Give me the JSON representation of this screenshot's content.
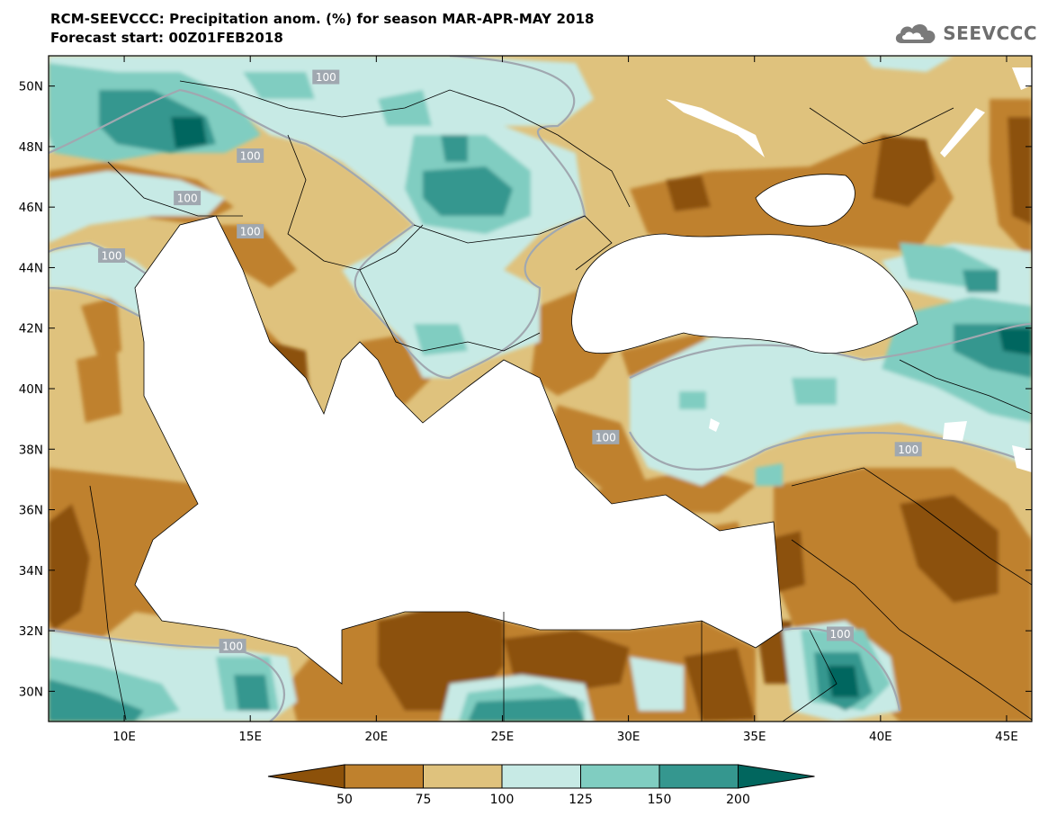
{
  "title": {
    "line1": "RCM-SEEVCCC: Precipitation anom. (%) for season MAR-APR-MAY 2018",
    "line2": "Forecast start: 00Z01FEB2018"
  },
  "logo": {
    "text": "SEEVCCC",
    "icon": "cloud-icon"
  },
  "map": {
    "lon_range": [
      7,
      46
    ],
    "lat_range": [
      29,
      51
    ],
    "lon_ticks": [
      {
        "value": 10,
        "label": "10E"
      },
      {
        "value": 15,
        "label": "15E"
      },
      {
        "value": 20,
        "label": "20E"
      },
      {
        "value": 25,
        "label": "25E"
      },
      {
        "value": 30,
        "label": "30E"
      },
      {
        "value": 35,
        "label": "35E"
      },
      {
        "value": 40,
        "label": "40E"
      },
      {
        "value": 45,
        "label": "45E"
      }
    ],
    "lat_ticks": [
      {
        "value": 50,
        "label": "50N"
      },
      {
        "value": 48,
        "label": "48N"
      },
      {
        "value": 46,
        "label": "46N"
      },
      {
        "value": 44,
        "label": "44N"
      },
      {
        "value": 42,
        "label": "42N"
      },
      {
        "value": 40,
        "label": "40N"
      },
      {
        "value": 38,
        "label": "38N"
      },
      {
        "value": 36,
        "label": "36N"
      },
      {
        "value": 34,
        "label": "34N"
      },
      {
        "value": 32,
        "label": "32N"
      },
      {
        "value": 30,
        "label": "30N"
      }
    ],
    "contour_labels": [
      {
        "text": "100",
        "lon": 18.0,
        "lat": 50.3
      },
      {
        "text": "100",
        "lon": 15.0,
        "lat": 47.7
      },
      {
        "text": "100",
        "lon": 12.5,
        "lat": 46.3
      },
      {
        "text": "100",
        "lon": 15.0,
        "lat": 45.2
      },
      {
        "text": "100",
        "lon": 9.5,
        "lat": 44.4
      },
      {
        "text": "100",
        "lon": 14.3,
        "lat": 31.5
      },
      {
        "text": "100",
        "lon": 29.1,
        "lat": 38.4
      },
      {
        "text": "100",
        "lon": 41.1,
        "lat": 38.0
      },
      {
        "text": "100",
        "lon": 38.4,
        "lat": 31.9
      }
    ]
  },
  "colorbar": {
    "colors": [
      "#8c510a",
      "#bf812d",
      "#dfc27d",
      "#c7eae5",
      "#80cdc1",
      "#35978f",
      "#01665e"
    ],
    "labels": [
      "50",
      "75",
      "100",
      "125",
      "150",
      "200"
    ]
  },
  "colors": {
    "very_dry": "#8c510a",
    "dry": "#bf812d",
    "slightly_dry": "#dfc27d",
    "slightly_wet": "#c7eae5",
    "wet": "#80cdc1",
    "very_wet": "#35978f",
    "extreme_wet": "#01665e",
    "contour_line": "#a0a8b0",
    "sea": "#ffffff"
  }
}
